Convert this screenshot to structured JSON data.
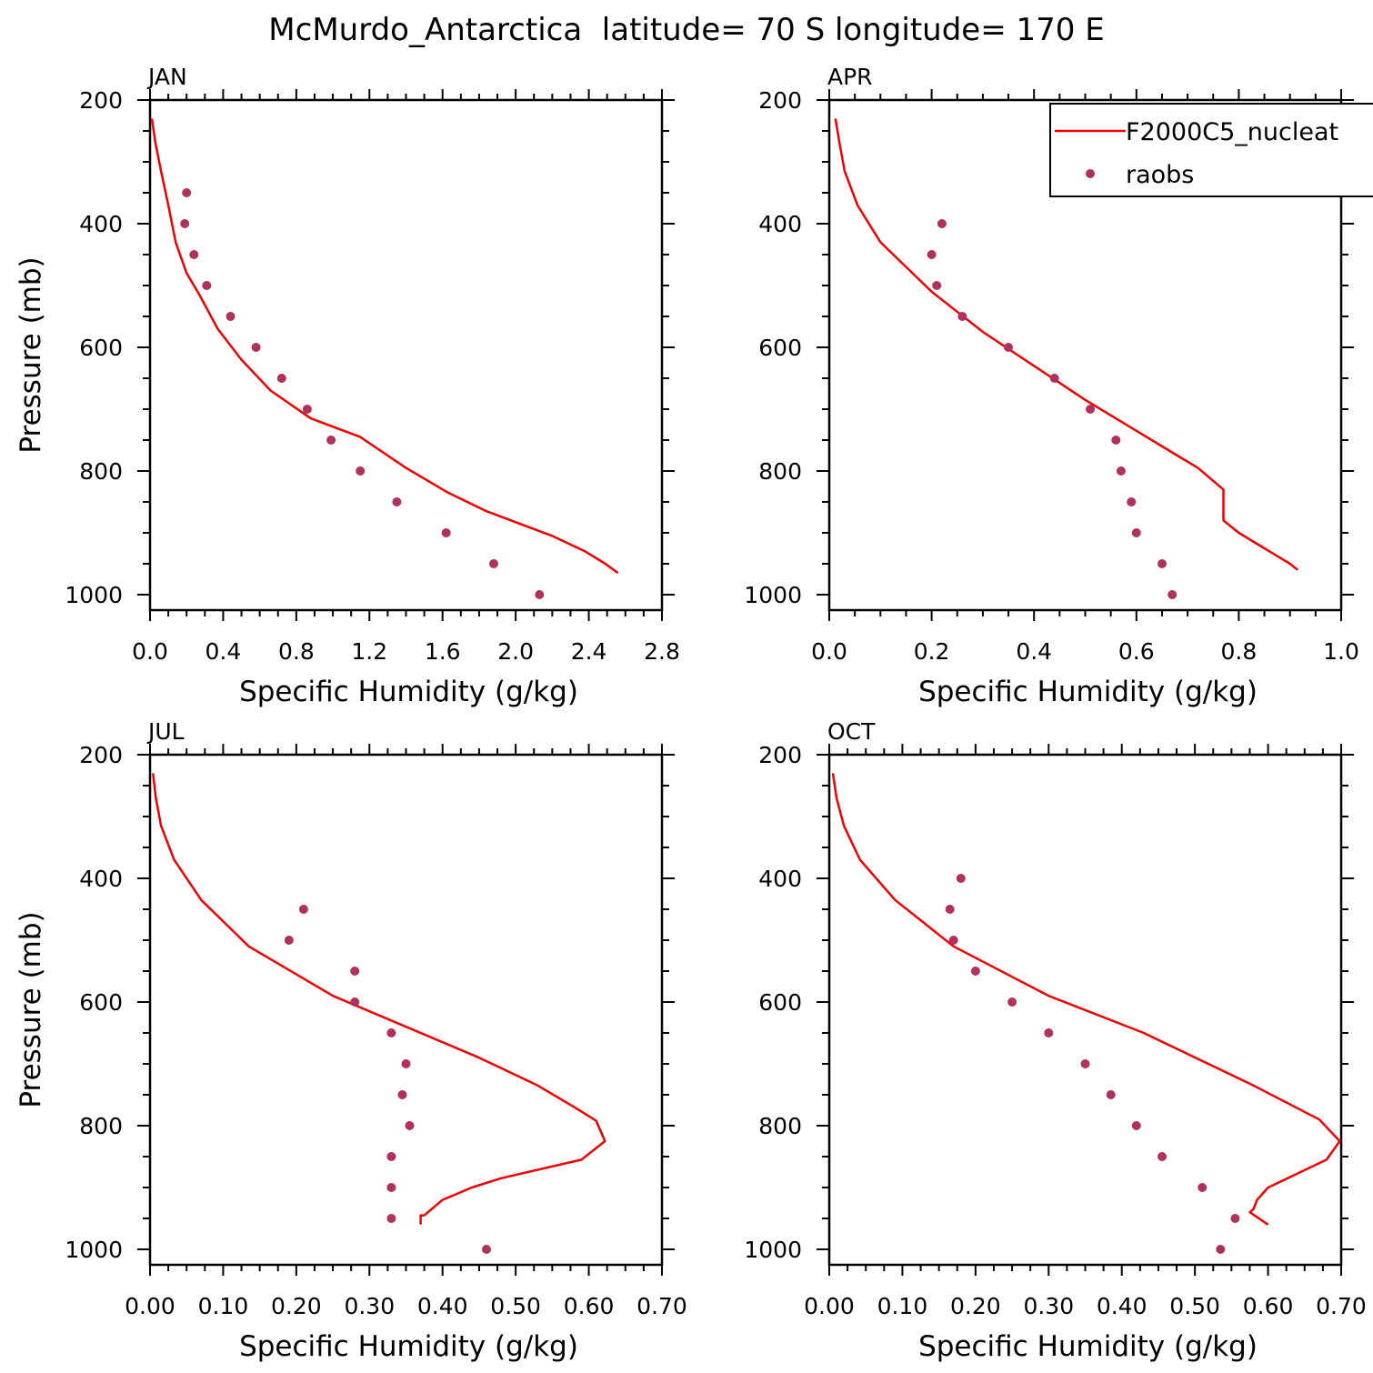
{
  "figure": {
    "title": "McMurdo_Antarctica  latitude= 70 S longitude= 170 E",
    "xlabel": "Specific Humidity (g/kg)",
    "ylabel": "Pressure (mb)",
    "legend": {
      "model_label": "F2000C5_nucleat",
      "obs_label": "raobs",
      "placement": "top-right of APR panel"
    },
    "colors": {
      "model": "#ee0000",
      "obs": "#b03060",
      "axes": "#000000"
    }
  },
  "chart_data": [
    {
      "type": "line",
      "panel_label": "JAN",
      "xlim": [
        0,
        2.8
      ],
      "xticks": [
        "0.0",
        "0.4",
        "0.8",
        "1.2",
        "1.6",
        "2.0",
        "2.4",
        "2.8"
      ],
      "ylim": [
        1025,
        200
      ],
      "yticks": [
        "200",
        "400",
        "600",
        "800",
        "1000"
      ],
      "series": [
        {
          "name": "F2000C5_nucleat",
          "style": "line",
          "x": [
            0.01,
            0.03,
            0.06,
            0.1,
            0.14,
            0.2,
            0.27,
            0.37,
            0.5,
            0.66,
            0.88,
            1.15,
            1.4,
            1.63,
            1.84,
            2.02,
            2.2,
            2.38,
            2.49,
            2.56
          ],
          "y": [
            230,
            270,
            315,
            370,
            430,
            480,
            515,
            570,
            620,
            670,
            715,
            745,
            795,
            835,
            865,
            885,
            905,
            930,
            950,
            965
          ]
        },
        {
          "name": "raobs",
          "style": "markers",
          "x": [
            0.2,
            0.19,
            0.24,
            0.31,
            0.44,
            0.58,
            0.72,
            0.86,
            0.99,
            1.15,
            1.35,
            1.62,
            1.88,
            2.13
          ],
          "y": [
            350,
            400,
            450,
            500,
            550,
            600,
            650,
            700,
            750,
            800,
            850,
            900,
            950,
            1000
          ]
        }
      ]
    },
    {
      "type": "line",
      "panel_label": "APR",
      "xlim": [
        0,
        1.0
      ],
      "xticks": [
        "0.0",
        "0.2",
        "0.4",
        "0.6",
        "0.8",
        "1.0"
      ],
      "ylim": [
        1025,
        200
      ],
      "yticks": [
        "200",
        "400",
        "600",
        "800",
        "1000"
      ],
      "series": [
        {
          "name": "F2000C5_nucleat",
          "style": "line",
          "x": [
            0.012,
            0.02,
            0.03,
            0.055,
            0.1,
            0.15,
            0.2,
            0.3,
            0.4,
            0.5,
            0.6,
            0.68,
            0.72,
            0.77,
            0.77,
            0.8,
            0.85,
            0.9,
            0.915
          ],
          "y": [
            230,
            270,
            315,
            370,
            430,
            470,
            510,
            575,
            630,
            685,
            735,
            775,
            795,
            830,
            880,
            900,
            925,
            950,
            960
          ]
        },
        {
          "name": "raobs",
          "style": "markers",
          "x": [
            0.22,
            0.2,
            0.21,
            0.26,
            0.35,
            0.44,
            0.51,
            0.56,
            0.57,
            0.59,
            0.6,
            0.65,
            0.67
          ],
          "y": [
            400,
            450,
            500,
            550,
            600,
            650,
            700,
            750,
            800,
            850,
            900,
            950,
            1000
          ]
        }
      ]
    },
    {
      "type": "line",
      "panel_label": "JUL",
      "xlim": [
        0,
        0.7
      ],
      "xticks": [
        "0.00",
        "0.10",
        "0.20",
        "0.30",
        "0.40",
        "0.50",
        "0.60",
        "0.70"
      ],
      "ylim": [
        1025,
        200
      ],
      "yticks": [
        "200",
        "400",
        "600",
        "800",
        "1000"
      ],
      "series": [
        {
          "name": "F2000C5_nucleat",
          "style": "line",
          "x": [
            0.004,
            0.008,
            0.015,
            0.033,
            0.07,
            0.135,
            0.25,
            0.35,
            0.45,
            0.53,
            0.58,
            0.61,
            0.622,
            0.59,
            0.48,
            0.44,
            0.4,
            0.375,
            0.37,
            0.37
          ],
          "y": [
            230,
            270,
            315,
            370,
            435,
            510,
            590,
            640,
            690,
            735,
            770,
            792,
            825,
            855,
            885,
            900,
            920,
            945,
            945,
            960
          ]
        },
        {
          "name": "raobs",
          "style": "markers",
          "x": [
            0.21,
            0.19,
            0.28,
            0.28,
            0.33,
            0.35,
            0.345,
            0.355,
            0.33,
            0.33,
            0.33,
            0.46
          ],
          "y": [
            450,
            500,
            550,
            600,
            650,
            700,
            750,
            800,
            850,
            900,
            950,
            1000
          ]
        }
      ]
    },
    {
      "type": "line",
      "panel_label": "OCT",
      "xlim": [
        0,
        0.7
      ],
      "xticks": [
        "0.00",
        "0.10",
        "0.20",
        "0.30",
        "0.40",
        "0.50",
        "0.60",
        "0.70"
      ],
      "ylim": [
        1025,
        200
      ],
      "yticks": [
        "200",
        "400",
        "600",
        "800",
        "1000"
      ],
      "series": [
        {
          "name": "F2000C5_nucleat",
          "style": "line",
          "x": [
            0.005,
            0.01,
            0.02,
            0.042,
            0.09,
            0.17,
            0.3,
            0.43,
            0.58,
            0.67,
            0.698,
            0.68,
            0.6,
            0.585,
            0.58,
            0.575,
            0.6
          ],
          "y": [
            230,
            270,
            315,
            370,
            435,
            510,
            590,
            650,
            735,
            790,
            825,
            855,
            900,
            920,
            935,
            940,
            960
          ]
        },
        {
          "name": "raobs",
          "style": "markers",
          "x": [
            0.18,
            0.165,
            0.17,
            0.2,
            0.25,
            0.3,
            0.35,
            0.385,
            0.42,
            0.455,
            0.51,
            0.555,
            0.535
          ],
          "y": [
            400,
            450,
            500,
            550,
            600,
            650,
            700,
            750,
            800,
            850,
            900,
            950,
            1000
          ]
        }
      ]
    }
  ]
}
